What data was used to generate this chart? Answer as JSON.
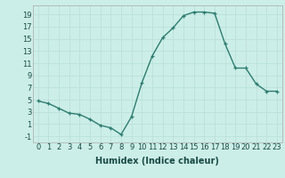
{
  "x": [
    0,
    1,
    2,
    3,
    4,
    5,
    6,
    7,
    8,
    9,
    10,
    11,
    12,
    13,
    14,
    15,
    16,
    17,
    18,
    19,
    20,
    21,
    22,
    23
  ],
  "y": [
    4.8,
    4.4,
    3.6,
    2.8,
    2.6,
    1.8,
    0.8,
    0.4,
    -0.7,
    2.2,
    7.8,
    12.2,
    15.2,
    16.8,
    18.8,
    19.4,
    19.4,
    19.2,
    14.2,
    10.2,
    10.2,
    7.6,
    6.4,
    6.4
  ],
  "line_color": "#2d7d6e",
  "marker": "+",
  "bg_color": "#cceee8",
  "grid_color": "#b8ddd8",
  "xlabel": "Humidex (Indice chaleur)",
  "xlabel_fontsize": 7,
  "tick_fontsize": 6,
  "xlim": [
    -0.5,
    23.5
  ],
  "ylim": [
    -2,
    20.5
  ],
  "yticks": [
    -1,
    1,
    3,
    5,
    7,
    9,
    11,
    13,
    15,
    17,
    19
  ],
  "xticks": [
    0,
    1,
    2,
    3,
    4,
    5,
    6,
    7,
    8,
    9,
    10,
    11,
    12,
    13,
    14,
    15,
    16,
    17,
    18,
    19,
    20,
    21,
    22,
    23
  ],
  "xtick_labels": [
    "0",
    "1",
    "2",
    "3",
    "4",
    "5",
    "6",
    "7",
    "8",
    "9",
    "10",
    "11",
    "12",
    "13",
    "14",
    "15",
    "16",
    "17",
    "18",
    "19",
    "20",
    "21",
    "22",
    "23"
  ],
  "linewidth": 1.0,
  "markersize": 3.5,
  "markeredgewidth": 0.9
}
